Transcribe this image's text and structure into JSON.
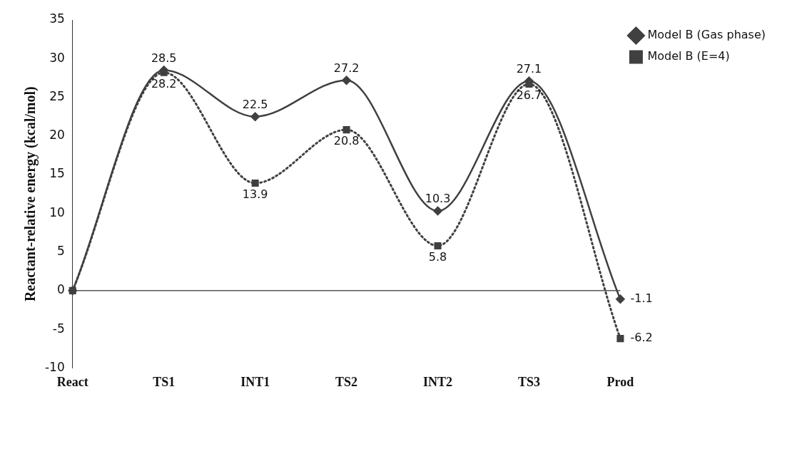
{
  "chart_data": {
    "type": "line",
    "ylabel": "Reactant-relative energy (kcal/mol)",
    "categories": [
      "React",
      "TS1",
      "INT1",
      "TS2",
      "INT2",
      "TS3",
      "Prod"
    ],
    "series": [
      {
        "name": "Model B (Gas phase)",
        "color": "#404040",
        "marker": "diamond",
        "line_style": "solid",
        "values": [
          0,
          28.5,
          22.5,
          27.2,
          10.3,
          27.1,
          -1.1
        ],
        "value_labels": [
          null,
          "28.5",
          "22.5",
          "27.2",
          "10.3",
          "27.1",
          "-1.1"
        ]
      },
      {
        "name": "Model B (E=4)",
        "color": "#404040",
        "marker": "square",
        "line_style": "dotted",
        "values": [
          0,
          28.2,
          13.9,
          20.8,
          5.8,
          26.7,
          -6.2
        ],
        "value_labels": [
          null,
          "28.2",
          "13.9",
          "20.8",
          "5.8",
          "26.7",
          "-6.2"
        ]
      }
    ],
    "ylim": [
      -10,
      35
    ],
    "yticks": [
      -10,
      -5,
      0,
      5,
      10,
      15,
      20,
      25,
      30,
      35
    ],
    "grid": false,
    "legend": "top right",
    "ref_lines": [
      {
        "axis": "y",
        "value": 0,
        "color": "#000000"
      }
    ]
  }
}
